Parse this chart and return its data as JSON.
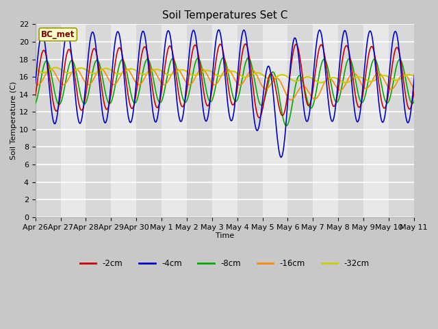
{
  "title": "Soil Temperatures Set C",
  "xlabel": "Time",
  "ylabel": "Soil Temperature (C)",
  "ylim": [
    0,
    22
  ],
  "yticks": [
    0,
    2,
    4,
    6,
    8,
    10,
    12,
    14,
    16,
    18,
    20,
    22
  ],
  "annotation": "BC_met",
  "fig_bg_color": "#c8c8c8",
  "plot_bg_color": "#e8e8e8",
  "band_colors": [
    "#d8d8d8",
    "#e8e8e8"
  ],
  "series_colors": [
    "#cc0000",
    "#0000cc",
    "#00aa00",
    "#ff8800",
    "#cccc00"
  ],
  "series_labels": [
    "-2cm",
    "-4cm",
    "-8cm",
    "-16cm",
    "-32cm"
  ],
  "x_labels": [
    "Apr 26",
    "Apr 27",
    "Apr 28",
    "Apr 29",
    "Apr 30",
    "May 1",
    "May 2",
    "May 3",
    "May 4",
    "May 5",
    "May 6",
    "May 7",
    "May 8",
    "May 9",
    "May 10",
    "May 11"
  ],
  "n_days": 16,
  "title_fontsize": 11,
  "label_fontsize": 8,
  "tick_fontsize": 8
}
